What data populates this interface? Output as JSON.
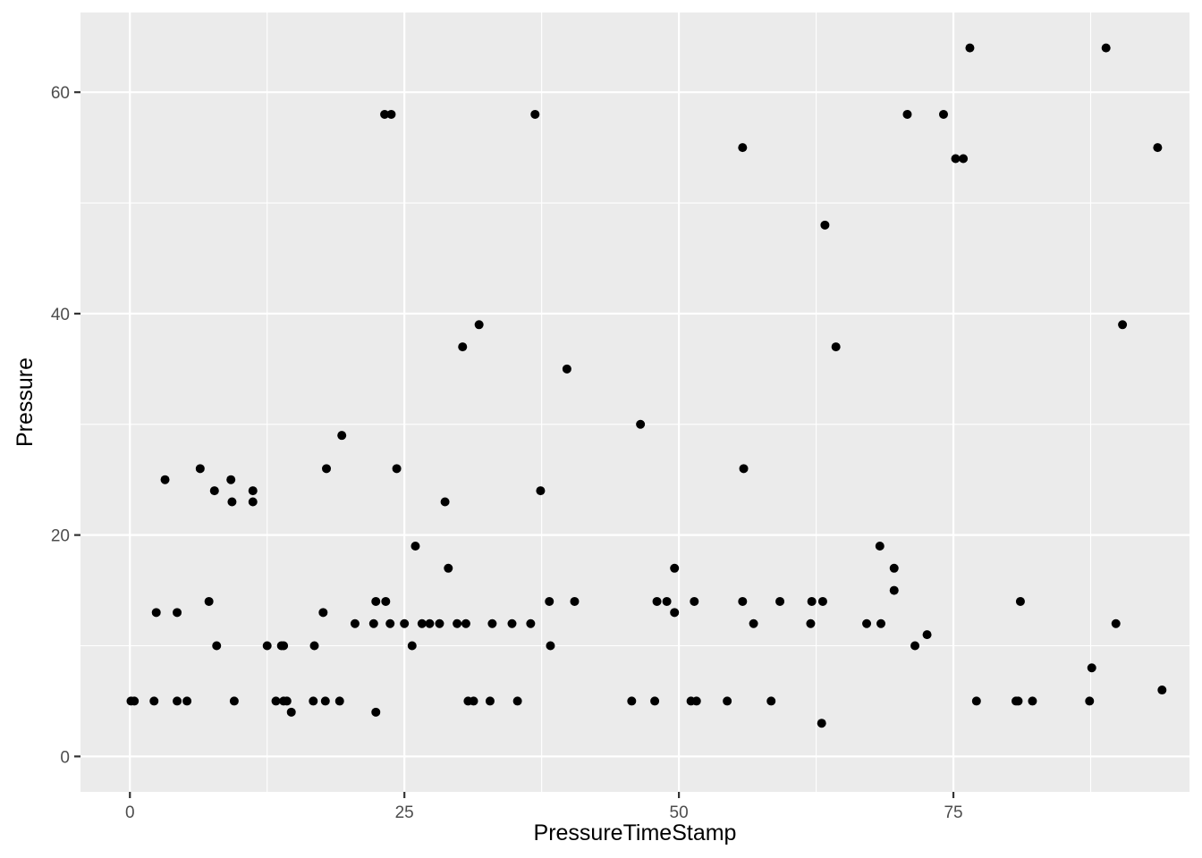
{
  "chart_data": {
    "type": "scatter",
    "title": "",
    "xlabel": "PressureTimeStamp",
    "ylabel": "Pressure",
    "xlim": [
      -4.5,
      96.5
    ],
    "ylim": [
      -3.2,
      67.2
    ],
    "x_ticks": [
      0,
      25,
      50,
      75
    ],
    "x_tick_labels": [
      "0",
      "25",
      "50",
      "75"
    ],
    "y_ticks": [
      0,
      20,
      40,
      60
    ],
    "y_tick_labels": [
      "0",
      "20",
      "40",
      "60"
    ],
    "grid": true,
    "legend": "none",
    "colors": {
      "panel": "#ebebeb",
      "grid": "#ffffff",
      "point": "#000000",
      "tick_text": "#4d4d4d",
      "axis_title": "#000000"
    },
    "points": [
      [
        0.1,
        5
      ],
      [
        0.4,
        5
      ],
      [
        2.2,
        5
      ],
      [
        2.4,
        13
      ],
      [
        3.2,
        25
      ],
      [
        4.3,
        13
      ],
      [
        4.3,
        5
      ],
      [
        5.2,
        5
      ],
      [
        6.4,
        26
      ],
      [
        7.2,
        14
      ],
      [
        7.7,
        24
      ],
      [
        7.9,
        10
      ],
      [
        9.2,
        25
      ],
      [
        9.3,
        23
      ],
      [
        9.5,
        5
      ],
      [
        11.2,
        24
      ],
      [
        11.2,
        23
      ],
      [
        12.5,
        10
      ],
      [
        13.3,
        5
      ],
      [
        13.8,
        10
      ],
      [
        14.0,
        10
      ],
      [
        14.0,
        5
      ],
      [
        14.3,
        5
      ],
      [
        14.7,
        4
      ],
      [
        16.8,
        10
      ],
      [
        16.7,
        5
      ],
      [
        17.6,
        13
      ],
      [
        17.8,
        5
      ],
      [
        17.9,
        26
      ],
      [
        19.1,
        5
      ],
      [
        19.3,
        29
      ],
      [
        20.5,
        12
      ],
      [
        22.2,
        12
      ],
      [
        22.4,
        14
      ],
      [
        22.4,
        4
      ],
      [
        23.2,
        58
      ],
      [
        23.3,
        14
      ],
      [
        23.7,
        12
      ],
      [
        23.8,
        58
      ],
      [
        24.3,
        26
      ],
      [
        25.0,
        12
      ],
      [
        25.7,
        10
      ],
      [
        26.0,
        19
      ],
      [
        26.6,
        12
      ],
      [
        27.3,
        12
      ],
      [
        28.2,
        12
      ],
      [
        28.7,
        23
      ],
      [
        29.0,
        17
      ],
      [
        29.8,
        12
      ],
      [
        30.3,
        37
      ],
      [
        30.6,
        12
      ],
      [
        30.8,
        5
      ],
      [
        31.3,
        5
      ],
      [
        31.8,
        39
      ],
      [
        32.8,
        5
      ],
      [
        33.0,
        12
      ],
      [
        34.8,
        12
      ],
      [
        35.3,
        5
      ],
      [
        36.5,
        12
      ],
      [
        36.9,
        58
      ],
      [
        37.4,
        24
      ],
      [
        38.2,
        14
      ],
      [
        38.3,
        10
      ],
      [
        39.8,
        35
      ],
      [
        40.5,
        14
      ],
      [
        45.7,
        5
      ],
      [
        46.5,
        30
      ],
      [
        47.8,
        5
      ],
      [
        48.0,
        14
      ],
      [
        48.9,
        14
      ],
      [
        49.6,
        13
      ],
      [
        49.6,
        17
      ],
      [
        51.1,
        5
      ],
      [
        51.4,
        14
      ],
      [
        51.6,
        5
      ],
      [
        54.4,
        5
      ],
      [
        55.8,
        55
      ],
      [
        55.8,
        14
      ],
      [
        55.9,
        26
      ],
      [
        56.8,
        12
      ],
      [
        58.4,
        5
      ],
      [
        59.2,
        14
      ],
      [
        62.0,
        12
      ],
      [
        62.1,
        14
      ],
      [
        63.1,
        14
      ],
      [
        63.0,
        3
      ],
      [
        63.3,
        48
      ],
      [
        64.3,
        37
      ],
      [
        67.1,
        12
      ],
      [
        68.3,
        19
      ],
      [
        68.4,
        12
      ],
      [
        69.6,
        17
      ],
      [
        69.6,
        15
      ],
      [
        70.8,
        58
      ],
      [
        71.5,
        10
      ],
      [
        72.6,
        11
      ],
      [
        74.1,
        58
      ],
      [
        75.2,
        54
      ],
      [
        75.9,
        54
      ],
      [
        76.5,
        64
      ],
      [
        77.1,
        5
      ],
      [
        80.7,
        5
      ],
      [
        80.9,
        5
      ],
      [
        81.1,
        14
      ],
      [
        82.2,
        5
      ],
      [
        87.4,
        5
      ],
      [
        87.6,
        8
      ],
      [
        88.9,
        64
      ],
      [
        89.8,
        12
      ],
      [
        90.4,
        39
      ],
      [
        93.6,
        55
      ],
      [
        94.0,
        6
      ]
    ]
  }
}
